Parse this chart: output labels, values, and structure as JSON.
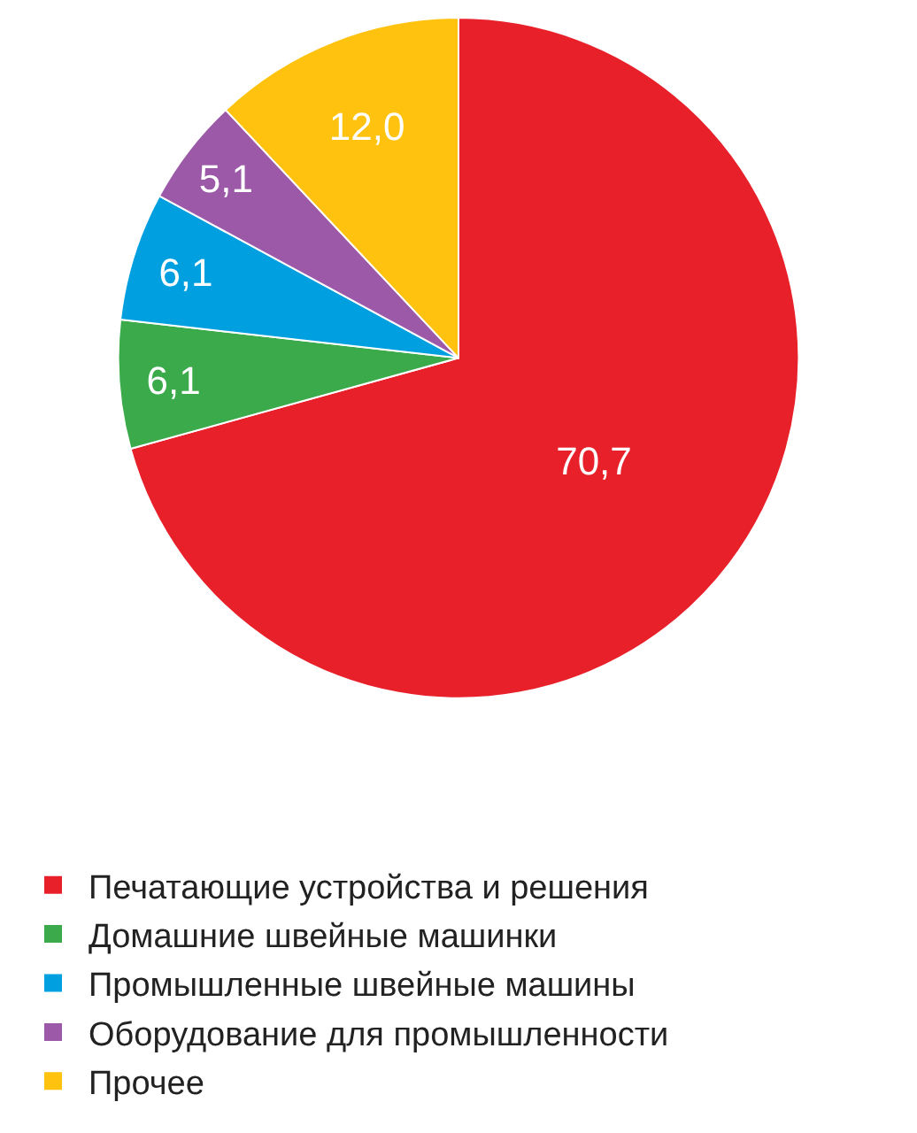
{
  "chart_data": {
    "type": "pie",
    "categories": [
      "Печатающие устройства и решения",
      "Домашние швейные машинки",
      "Промышленные швейные машины",
      "Оборудование для промышленности",
      "Прочее"
    ],
    "values": [
      70.7,
      6.1,
      6.1,
      5.1,
      12.0
    ],
    "value_labels": [
      "70,7",
      "6,1",
      "6,1",
      "5,1",
      "12,0"
    ],
    "colors": [
      "#e8202a",
      "#3aaa4a",
      "#00a0e0",
      "#9b59a8",
      "#ffc20e"
    ],
    "legend": "bottom"
  }
}
